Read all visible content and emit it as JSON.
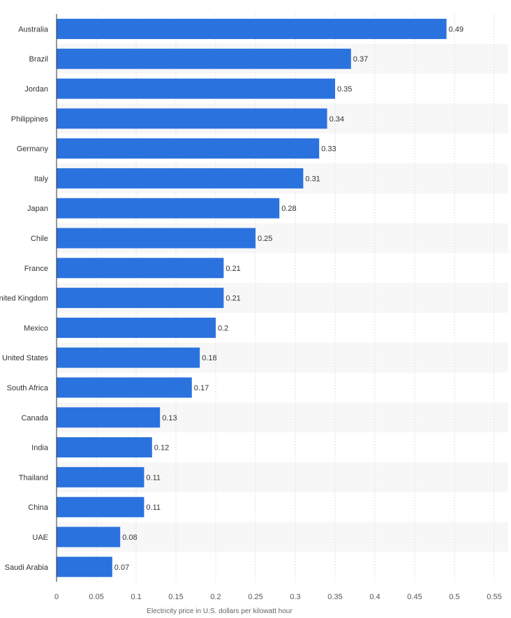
{
  "chart_data": {
    "type": "bar",
    "orientation": "horizontal",
    "title": "",
    "xlabel": "Electricity price in U.S. dollars per kilowatt hour",
    "ylabel": "",
    "xlim": [
      0,
      0.55
    ],
    "ticks": [
      0,
      0.05,
      0.1,
      0.15,
      0.2,
      0.25,
      0.3,
      0.35,
      0.4,
      0.45,
      0.5,
      0.55
    ],
    "tick_labels": [
      "0",
      "0.05",
      "0.1",
      "0.15",
      "0.2",
      "0.25",
      "0.3",
      "0.35",
      "0.4",
      "0.45",
      "0.5",
      "0.55"
    ],
    "grid": true,
    "bar_color": "#2a72de",
    "categories": [
      "Australia",
      "Brazil",
      "Jordan",
      "Philippines",
      "Germany",
      "Italy",
      "Japan",
      "Chile",
      "France",
      "United Kingdom",
      "Mexico",
      "United States",
      "South Africa",
      "Canada",
      "India",
      "Thailand",
      "China",
      "UAE",
      "Saudi Arabia"
    ],
    "values": [
      0.49,
      0.37,
      0.35,
      0.34,
      0.33,
      0.31,
      0.28,
      0.25,
      0.21,
      0.21,
      0.2,
      0.18,
      0.17,
      0.13,
      0.12,
      0.11,
      0.11,
      0.08,
      0.07
    ],
    "value_labels": [
      "0.49",
      "0.37",
      "0.35",
      "0.34",
      "0.33",
      "0.31",
      "0.28",
      "0.25",
      "0.21",
      "0.21",
      "0.2",
      "0.18",
      "0.17",
      "0.13",
      "0.12",
      "0.11",
      "0.11",
      "0.08",
      "0.07"
    ]
  }
}
